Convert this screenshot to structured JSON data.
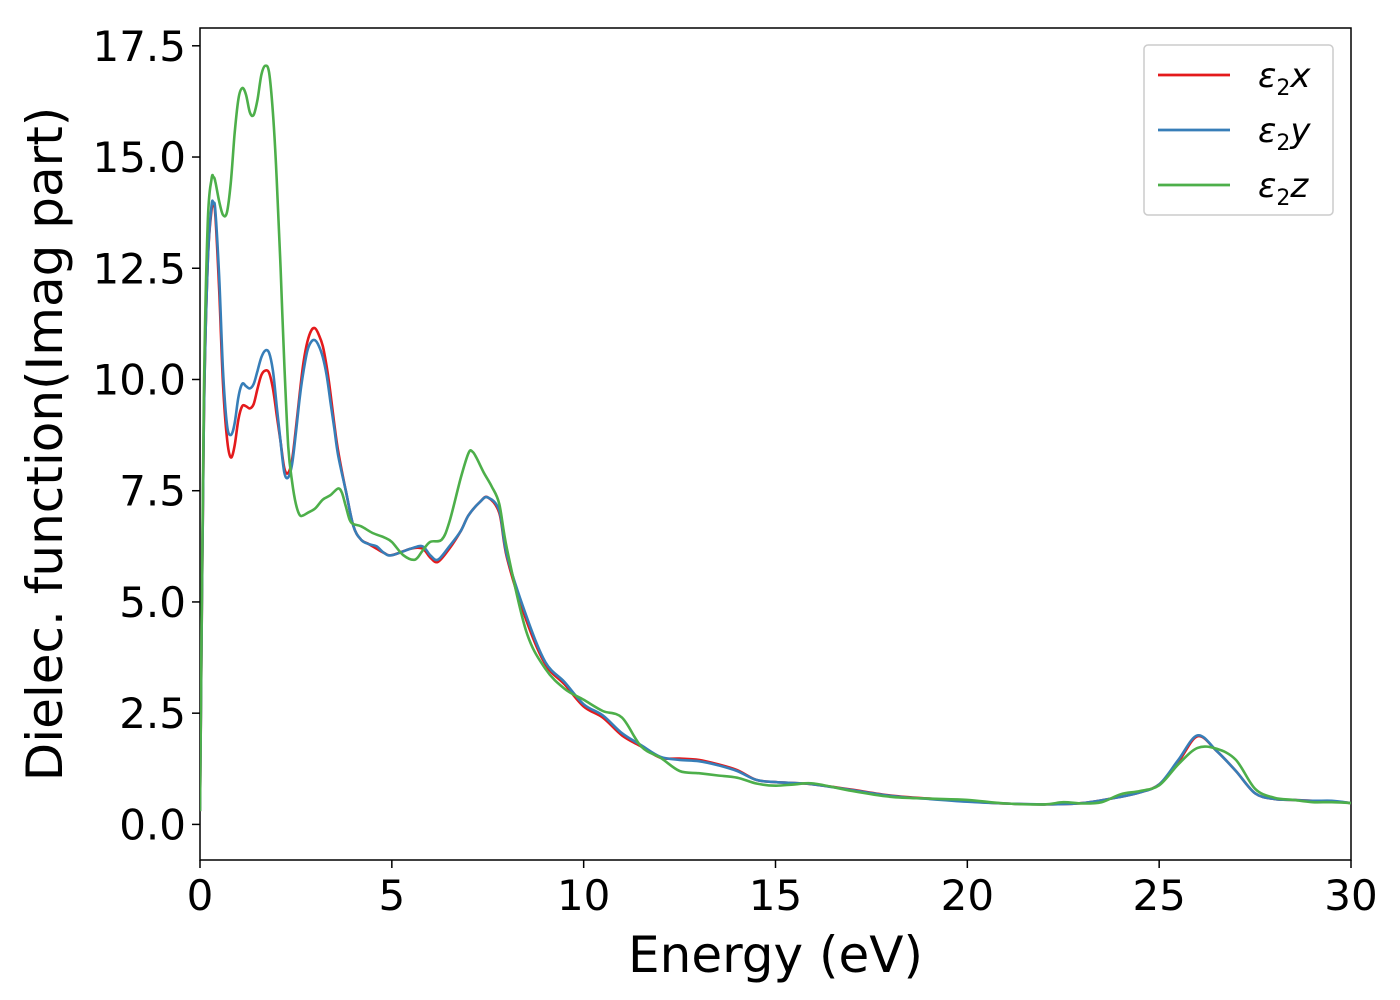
{
  "chart_data": {
    "type": "line",
    "title": "",
    "xlabel": "Energy (eV)",
    "ylabel": "Dielec. function(Imag part)",
    "xlim": [
      0,
      30
    ],
    "ylim": [
      -0.8,
      17.9
    ],
    "xticks": [
      0,
      5,
      10,
      15,
      20,
      25,
      30
    ],
    "xtick_labels": [
      "0",
      "5",
      "10",
      "15",
      "20",
      "25",
      "30"
    ],
    "yticks": [
      0.0,
      2.5,
      5.0,
      7.5,
      10.0,
      12.5,
      15.0,
      17.5
    ],
    "ytick_labels": [
      "0.0",
      "2.5",
      "5.0",
      "7.5",
      "10.0",
      "12.5",
      "15.0",
      "17.5"
    ],
    "grid": false,
    "legend": "top-right",
    "series": [
      {
        "name": "ε₂x",
        "base": "ε",
        "sub": "2",
        "var": "x",
        "color": "#e41a1c",
        "x": [
          0,
          0.1,
          0.2,
          0.3,
          0.35,
          0.4,
          0.5,
          0.6,
          0.7,
          0.8,
          0.9,
          1.0,
          1.1,
          1.2,
          1.3,
          1.4,
          1.5,
          1.6,
          1.7,
          1.8,
          1.9,
          2.0,
          2.1,
          2.2,
          2.3,
          2.4,
          2.5,
          2.6,
          2.7,
          2.8,
          2.9,
          3.0,
          3.1,
          3.2,
          3.3,
          3.4,
          3.5,
          3.6,
          3.8,
          4.0,
          4.2,
          4.4,
          4.6,
          4.8,
          5.0,
          5.5,
          5.8,
          6.0,
          6.2,
          6.5,
          6.8,
          7.0,
          7.3,
          7.5,
          7.8,
          8.0,
          8.5,
          9.0,
          9.5,
          10.0,
          10.5,
          11.0,
          11.5,
          12.0,
          12.5,
          13.0,
          13.5,
          14.0,
          14.5,
          15.0,
          15.5,
          16.0,
          17.0,
          18.0,
          19.0,
          20.0,
          21.0,
          22.0,
          23.0,
          24.0,
          24.5,
          25.0,
          25.5,
          26.0,
          26.5,
          27.0,
          27.5,
          28.0,
          28.5,
          29.0,
          29.5,
          30.0
        ],
        "y": [
          0.3,
          9.0,
          12.6,
          13.8,
          13.9,
          13.7,
          12.0,
          9.9,
          8.7,
          8.25,
          8.5,
          9.1,
          9.4,
          9.4,
          9.35,
          9.45,
          9.8,
          10.1,
          10.2,
          10.15,
          9.8,
          9.2,
          8.6,
          8.0,
          7.9,
          8.2,
          8.9,
          9.7,
          10.4,
          10.85,
          11.1,
          11.15,
          11.0,
          10.75,
          10.3,
          9.7,
          9.0,
          8.4,
          7.5,
          6.7,
          6.4,
          6.3,
          6.2,
          6.1,
          6.05,
          6.2,
          6.2,
          6.0,
          5.9,
          6.2,
          6.6,
          6.95,
          7.25,
          7.35,
          7.0,
          6.0,
          4.6,
          3.6,
          3.15,
          2.65,
          2.4,
          2.0,
          1.75,
          1.5,
          1.48,
          1.45,
          1.35,
          1.22,
          1.0,
          0.95,
          0.93,
          0.9,
          0.78,
          0.65,
          0.58,
          0.52,
          0.47,
          0.45,
          0.48,
          0.62,
          0.72,
          0.9,
          1.4,
          1.98,
          1.65,
          1.2,
          0.7,
          0.57,
          0.55,
          0.53,
          0.52,
          0.48
        ]
      },
      {
        "name": "ε₂y",
        "base": "ε",
        "sub": "2",
        "var": "y",
        "color": "#377eb8",
        "x": [
          0,
          0.1,
          0.2,
          0.3,
          0.35,
          0.4,
          0.5,
          0.6,
          0.7,
          0.8,
          0.9,
          1.0,
          1.1,
          1.2,
          1.3,
          1.4,
          1.5,
          1.6,
          1.7,
          1.8,
          1.9,
          2.0,
          2.1,
          2.2,
          2.3,
          2.4,
          2.5,
          2.6,
          2.7,
          2.8,
          2.9,
          3.0,
          3.1,
          3.2,
          3.3,
          3.4,
          3.5,
          3.6,
          3.8,
          4.0,
          4.2,
          4.4,
          4.6,
          4.8,
          5.0,
          5.5,
          5.8,
          6.0,
          6.2,
          6.5,
          6.8,
          7.0,
          7.3,
          7.5,
          7.8,
          8.0,
          8.5,
          9.0,
          9.5,
          10.0,
          10.5,
          11.0,
          11.5,
          12.0,
          12.5,
          13.0,
          13.5,
          14.0,
          14.5,
          15.0,
          15.5,
          16.0,
          17.0,
          18.0,
          19.0,
          20.0,
          21.0,
          22.0,
          23.0,
          24.0,
          24.5,
          25.0,
          25.5,
          26.0,
          26.5,
          27.0,
          27.5,
          28.0,
          28.5,
          29.0,
          29.5,
          30.0
        ],
        "y": [
          0.3,
          9.0,
          12.6,
          13.9,
          13.95,
          13.8,
          12.3,
          10.2,
          9.0,
          8.75,
          9.0,
          9.6,
          9.9,
          9.85,
          9.8,
          9.9,
          10.2,
          10.5,
          10.65,
          10.6,
          10.2,
          9.4,
          8.6,
          7.9,
          7.8,
          8.1,
          8.8,
          9.6,
          10.2,
          10.65,
          10.85,
          10.88,
          10.75,
          10.5,
          10.1,
          9.5,
          8.9,
          8.3,
          7.5,
          6.7,
          6.4,
          6.3,
          6.25,
          6.1,
          6.05,
          6.2,
          6.25,
          6.05,
          5.95,
          6.25,
          6.6,
          6.95,
          7.25,
          7.35,
          7.05,
          6.05,
          4.7,
          3.65,
          3.2,
          2.7,
          2.45,
          2.05,
          1.78,
          1.52,
          1.45,
          1.42,
          1.33,
          1.2,
          1.0,
          0.95,
          0.93,
          0.9,
          0.77,
          0.64,
          0.57,
          0.51,
          0.47,
          0.45,
          0.48,
          0.62,
          0.72,
          0.9,
          1.45,
          2.0,
          1.65,
          1.2,
          0.7,
          0.57,
          0.55,
          0.53,
          0.53,
          0.48
        ]
      },
      {
        "name": "ε₂z",
        "base": "ε",
        "sub": "2",
        "var": "z",
        "color": "#4daf4a",
        "x": [
          0,
          0.1,
          0.2,
          0.3,
          0.35,
          0.4,
          0.5,
          0.6,
          0.7,
          0.8,
          0.9,
          1.0,
          1.1,
          1.2,
          1.3,
          1.4,
          1.5,
          1.6,
          1.7,
          1.8,
          1.9,
          2.0,
          2.1,
          2.2,
          2.3,
          2.4,
          2.5,
          2.6,
          2.7,
          2.8,
          3.0,
          3.2,
          3.4,
          3.6,
          3.7,
          3.8,
          3.9,
          4.0,
          4.2,
          4.5,
          4.8,
          5.0,
          5.3,
          5.6,
          5.8,
          6.0,
          6.3,
          6.5,
          6.8,
          7.0,
          7.1,
          7.2,
          7.4,
          7.6,
          7.8,
          8.0,
          8.5,
          9.0,
          9.5,
          10.0,
          10.5,
          11.0,
          11.5,
          12.0,
          12.5,
          13.0,
          13.5,
          14.0,
          14.5,
          15.0,
          15.5,
          16.0,
          17.0,
          18.0,
          19.0,
          20.0,
          21.0,
          22.0,
          22.5,
          23.0,
          23.5,
          24.0,
          24.5,
          25.0,
          25.5,
          26.0,
          26.5,
          27.0,
          27.5,
          28.0,
          28.5,
          29.0,
          29.5,
          30.0
        ],
        "y": [
          0.3,
          9.5,
          13.5,
          14.5,
          14.55,
          14.45,
          14.0,
          13.7,
          13.75,
          14.4,
          15.5,
          16.3,
          16.55,
          16.4,
          16.0,
          15.95,
          16.3,
          16.85,
          17.05,
          16.9,
          16.0,
          14.5,
          12.5,
          10.3,
          8.5,
          7.7,
          7.2,
          6.95,
          6.95,
          7.0,
          7.1,
          7.3,
          7.4,
          7.55,
          7.45,
          7.15,
          6.85,
          6.75,
          6.7,
          6.55,
          6.45,
          6.35,
          6.05,
          5.95,
          6.15,
          6.35,
          6.4,
          6.8,
          7.8,
          8.35,
          8.38,
          8.25,
          7.9,
          7.6,
          7.2,
          6.2,
          4.35,
          3.5,
          3.05,
          2.8,
          2.55,
          2.4,
          1.75,
          1.5,
          1.2,
          1.15,
          1.1,
          1.05,
          0.92,
          0.87,
          0.9,
          0.92,
          0.75,
          0.62,
          0.58,
          0.55,
          0.47,
          0.45,
          0.5,
          0.47,
          0.5,
          0.68,
          0.75,
          0.88,
          1.35,
          1.72,
          1.7,
          1.45,
          0.8,
          0.6,
          0.55,
          0.5,
          0.5,
          0.48
        ]
      }
    ]
  }
}
